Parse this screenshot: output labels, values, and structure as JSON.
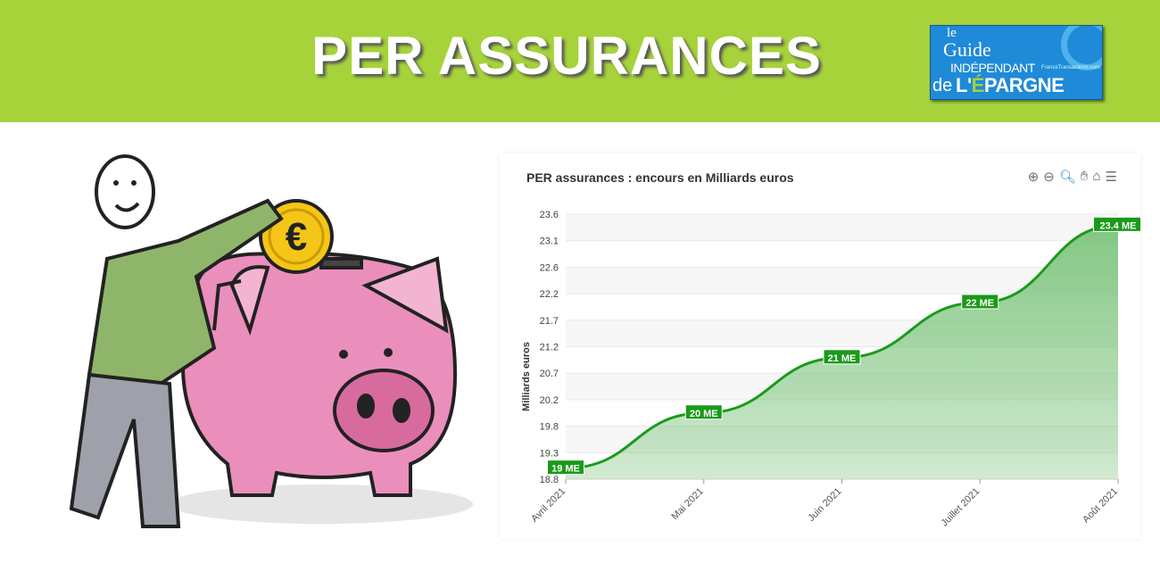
{
  "banner": {
    "title": "PER ASSURANCES",
    "background": "#a6d33a"
  },
  "logo": {
    "line1": "le",
    "line2": "Guide",
    "line3": "INDÉPENDANT",
    "line4": "de",
    "line5a": "L'",
    "line5b": "É",
    "line5c": "PARGNE",
    "tagline": "FranceTransactions.com"
  },
  "illustration": {
    "coin_symbol": "€"
  },
  "toolbar": {
    "icons": [
      "zoom-in-icon",
      "zoom-out-icon",
      "zoom-select-icon",
      "pan-icon",
      "home-icon",
      "menu-icon"
    ]
  },
  "chart_data": {
    "type": "area",
    "title": "PER assurances : encours en Milliards euros",
    "ylabel": "Milliards euros",
    "xlabel": "",
    "categories": [
      "Avril 2021",
      "Mai 2021",
      "Juin 2021",
      "Juillet 2021",
      "Août 2021"
    ],
    "values": [
      19,
      20,
      21,
      22,
      23.4
    ],
    "data_labels": [
      "19 ME",
      "20 ME",
      "21 ME",
      "22 ME",
      "23.4 ME"
    ],
    "ylim": [
      18.8,
      23.6
    ],
    "yticks": [
      "18.8",
      "19.3",
      "19.8",
      "20.2",
      "20.7",
      "21.2",
      "21.7",
      "22.2",
      "22.6",
      "23.1",
      "23.6"
    ],
    "grid": true,
    "line_color": "#1a9a1a",
    "fill_color": "#7cc47c"
  }
}
